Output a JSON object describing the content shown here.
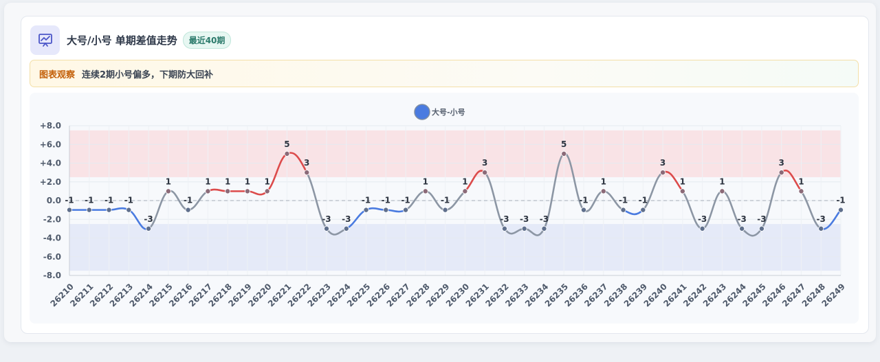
{
  "header": {
    "title": "大号/小号 单期差值走势",
    "badge": "最近40期"
  },
  "observation": {
    "label": "图表观察",
    "text": "连续2期小号偏多，下期防大回补"
  },
  "colors": {
    "accent": "#4a7be0",
    "positive": "#dc4b4b",
    "negative": "#4a7be0",
    "neutral": "#8c96a4",
    "high_band": "#f9e3e6",
    "low_band": "#e5eaf8"
  },
  "chart_data": {
    "type": "line",
    "title": "",
    "xlabel": "",
    "ylabel": "",
    "ylim": [
      -8,
      8
    ],
    "yticks": [
      "+8.0",
      "+6.0",
      "+4.0",
      "+2.0",
      "0.0",
      "-2.0",
      "-4.0",
      "-6.0",
      "-8.0"
    ],
    "legend_position": "top-center",
    "grid": true,
    "bands": [
      {
        "from": 2.5,
        "to": 7.5,
        "color": "high_band"
      },
      {
        "from": -7.5,
        "to": -2.5,
        "color": "low_band"
      }
    ],
    "zero_line": "dashed",
    "categories": [
      "26210",
      "26211",
      "26212",
      "26213",
      "26214",
      "26215",
      "26216",
      "26217",
      "26218",
      "26219",
      "26220",
      "26221",
      "26222",
      "26223",
      "26224",
      "26225",
      "26226",
      "26227",
      "26228",
      "26229",
      "26230",
      "26231",
      "26232",
      "26233",
      "26234",
      "26235",
      "26236",
      "26237",
      "26238",
      "26239",
      "26240",
      "26241",
      "26242",
      "26243",
      "26244",
      "26245",
      "26246",
      "26247",
      "26248",
      "26249"
    ],
    "series": [
      {
        "name": "大号-小号",
        "values": [
          -1,
          -1,
          -1,
          -1,
          -3,
          1,
          -1,
          1,
          1,
          1,
          1,
          5,
          3,
          -3,
          -3,
          -1,
          -1,
          -1,
          1,
          -1,
          1,
          3,
          -3,
          -3,
          -3,
          5,
          -1,
          1,
          -1,
          -1,
          3,
          1,
          -3,
          1,
          -3,
          -3,
          3,
          1,
          -3,
          -1
        ],
        "labels": [
          "-1",
          "-1",
          "-1",
          "-1",
          "-3",
          "1",
          "-1",
          "1",
          "1",
          "1",
          "1",
          "5",
          "3",
          "-3",
          "-3",
          "-1",
          "-1",
          "-1",
          "1",
          "-1",
          "1",
          "3",
          "-3",
          "-3",
          "-3",
          "5",
          "-1",
          "1",
          "-1",
          "-1",
          "3",
          "1",
          "-3",
          "1",
          "-3",
          "-3",
          "3",
          "1",
          "-3",
          "-1"
        ]
      }
    ]
  }
}
